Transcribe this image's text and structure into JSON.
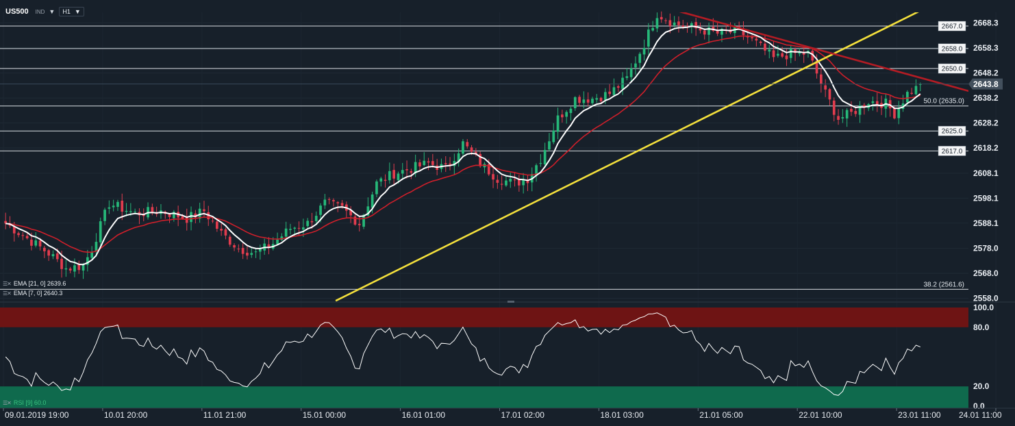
{
  "header": {
    "symbol": "US500",
    "market": "IND",
    "timeframe": "H1"
  },
  "indicators": {
    "ema21": "EMA [21, 0] 2639.6",
    "ema7": "EMA [7, 0] 2640.3",
    "rsi": "RSI [9] 60.0",
    "rsi_value": "60.0"
  },
  "colors": {
    "background": "#17202a",
    "bull": "#26b879",
    "bear": "#e23c4e",
    "ema_fast": "#ffffff",
    "ema_slow": "#cf1f2a",
    "trend_up": "#f4e03c",
    "trend_down": "#b41c24",
    "rsi_overbought": "#6e1414",
    "rsi_oversold": "#0f6a4d"
  },
  "chart_data": {
    "type": "candlestick",
    "y_axis_ticks": [
      2668.3,
      2658.3,
      2648.2,
      2638.2,
      2628.2,
      2618.2,
      2608.1,
      2598.1,
      2588.1,
      2578.0,
      2568.0,
      2558.0
    ],
    "y_axis_labels": [
      "2668.3",
      "2658.3",
      "2648.2",
      "2638.2",
      "2628.2",
      "2618.2",
      "2608.1",
      "2598.1",
      "2588.1",
      "2578.0",
      "2568.0",
      "2558.0"
    ],
    "ylim": [
      2556.5,
      2672.5
    ],
    "current_price": 2643.8,
    "current_price_label": "2643.8",
    "levels": [
      {
        "value": 2667.0,
        "label": "2667.0"
      },
      {
        "value": 2658.0,
        "label": "2658.0"
      },
      {
        "value": 2650.0,
        "label": "2650.0"
      },
      {
        "value": 2625.0,
        "label": "2625.0"
      },
      {
        "value": 2617.0,
        "label": "2617.0"
      }
    ],
    "fib_levels": [
      {
        "value": 2635.0,
        "label": "50.0 (2635.0)"
      },
      {
        "value": 2561.6,
        "label": "38.2 (2561.6)"
      }
    ],
    "x_axis_labels": [
      "09.01.2019  19:00",
      "10.01  20:00",
      "11.01  21:00",
      "15.01  00:00",
      "16.01  01:00",
      "17.01  02:00",
      "18.01  03:00",
      "21.01  05:00",
      "22.01  10:00",
      "23.01  11:00",
      "24.01  11:00"
    ],
    "x_axis_bar_index": [
      0,
      23,
      46,
      69,
      92,
      115,
      138,
      161,
      184,
      207,
      230
    ],
    "bar_count": 213,
    "close_anchors": [
      [
        0,
        2588
      ],
      [
        5,
        2582
      ],
      [
        10,
        2576
      ],
      [
        14,
        2570
      ],
      [
        18,
        2571
      ],
      [
        20,
        2578
      ],
      [
        24,
        2596
      ],
      [
        30,
        2592
      ],
      [
        36,
        2593
      ],
      [
        42,
        2590
      ],
      [
        46,
        2593
      ],
      [
        50,
        2584
      ],
      [
        54,
        2578
      ],
      [
        58,
        2576
      ],
      [
        62,
        2580
      ],
      [
        66,
        2586
      ],
      [
        70,
        2588
      ],
      [
        74,
        2596
      ],
      [
        78,
        2594
      ],
      [
        82,
        2588
      ],
      [
        86,
        2604
      ],
      [
        90,
        2608
      ],
      [
        94,
        2610
      ],
      [
        98,
        2612
      ],
      [
        102,
        2610
      ],
      [
        106,
        2620
      ],
      [
        110,
        2612
      ],
      [
        114,
        2606
      ],
      [
        118,
        2604
      ],
      [
        121,
        2606
      ],
      [
        124,
        2614
      ],
      [
        128,
        2630
      ],
      [
        132,
        2638
      ],
      [
        136,
        2638
      ],
      [
        140,
        2640
      ],
      [
        144,
        2646
      ],
      [
        148,
        2660
      ],
      [
        151,
        2672
      ],
      [
        155,
        2668
      ],
      [
        160,
        2666
      ],
      [
        165,
        2664
      ],
      [
        170,
        2665
      ],
      [
        174,
        2660
      ],
      [
        178,
        2654
      ],
      [
        182,
        2656
      ],
      [
        186,
        2656
      ],
      [
        190,
        2640
      ],
      [
        193,
        2630
      ],
      [
        196,
        2632
      ],
      [
        200,
        2637
      ],
      [
        204,
        2636
      ],
      [
        206,
        2632
      ],
      [
        209,
        2640
      ],
      [
        212,
        2643
      ]
    ],
    "trendlines": [
      {
        "name": "support",
        "from": [
          77,
          2557
        ],
        "to": [
          217,
          2677
        ]
      },
      {
        "name": "resistance",
        "from": [
          150,
          2676
        ],
        "to": [
          230,
          2638
        ]
      }
    ],
    "rsi": {
      "period": 9,
      "ticks": [
        100.0,
        80.0,
        20.0,
        0.0
      ],
      "tick_labels": [
        "100.0",
        "80.0",
        "20.0",
        "0.0"
      ],
      "overbought": 80,
      "oversold": 20,
      "last_value": 60.0
    }
  }
}
